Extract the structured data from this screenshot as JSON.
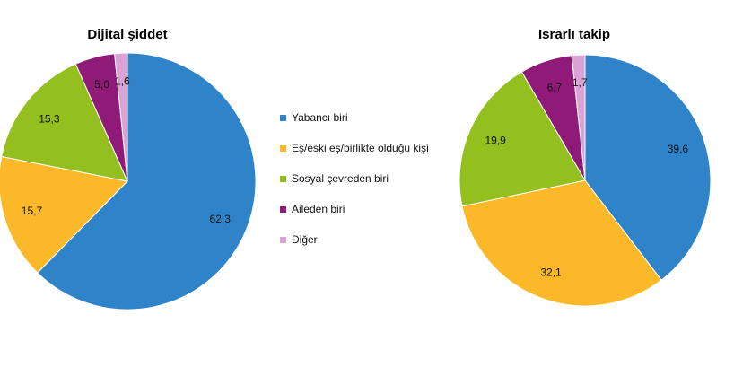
{
  "chart_data": [
    {
      "type": "pie",
      "title": "Dijital şiddet",
      "categories": [
        "Yabancı biri",
        "Eş/eski eş/birlikte olduğu kişi",
        "Sosyal çevreden biri",
        "Aileden biri",
        "Diğer"
      ],
      "values": [
        62.3,
        15.7,
        15.3,
        5.0,
        1.6
      ],
      "value_labels": [
        "62,3",
        "15,7",
        "15,3",
        "5,0",
        "1,6"
      ]
    },
    {
      "type": "pie",
      "title": "Israrlı takip",
      "categories": [
        "Yabancı biri",
        "Eş/eski eş/birlikte olduğu kişi",
        "Sosyal çevreden biri",
        "Aileden biri",
        "Diğer"
      ],
      "values": [
        39.6,
        32.1,
        19.9,
        6.7,
        1.7
      ],
      "value_labels": [
        "39,6",
        "32,1",
        "19,9",
        "6,7",
        "1,7"
      ]
    }
  ],
  "legend": {
    "placement": "center",
    "items": [
      {
        "label": "Yabancı biri",
        "color": "#2f83c9"
      },
      {
        "label": "Eş/eski eş/birlikte olduğu kişi",
        "color": "#fbb829"
      },
      {
        "label": "Sosyal çevreden biri",
        "color": "#93c01f"
      },
      {
        "label": "Aileden biri",
        "color": "#8f1a78"
      },
      {
        "label": "Diğer",
        "color": "#d9a3d6"
      }
    ]
  }
}
